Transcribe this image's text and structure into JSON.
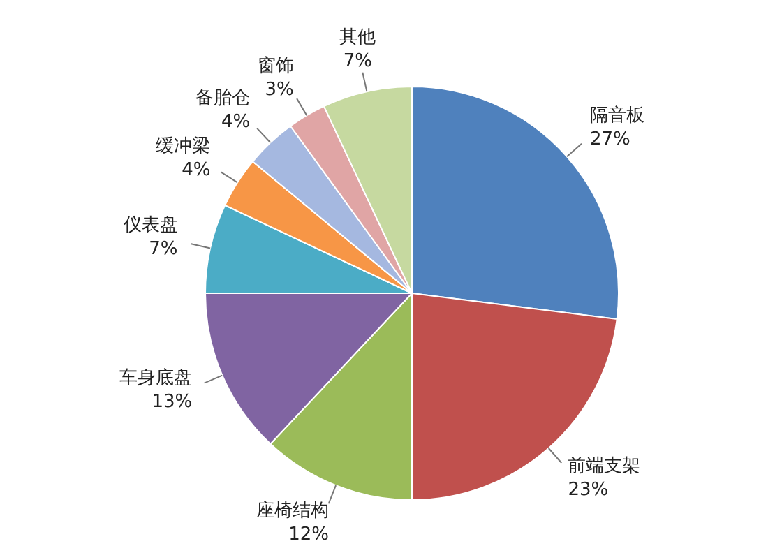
{
  "chart_data": {
    "type": "pie",
    "categories": [
      "隔音板",
      "前端支架",
      "座椅结构",
      "车身底盘",
      "仪表盘",
      "缓冲梁",
      "备胎仓",
      "窗饰",
      "其他"
    ],
    "values": [
      27,
      23,
      12,
      13,
      7,
      4,
      4,
      3,
      7
    ],
    "colors": [
      "#4f81bd",
      "#c0504d",
      "#9bbb59",
      "#8064a2",
      "#4bacc6",
      "#f79646",
      "#a5b8e0",
      "#e0a5a5",
      "#c6d9a0"
    ],
    "value_labels": [
      "27%",
      "23%",
      "12%",
      "13%",
      "7%",
      "4%",
      "4%",
      "3%",
      "7%"
    ]
  }
}
